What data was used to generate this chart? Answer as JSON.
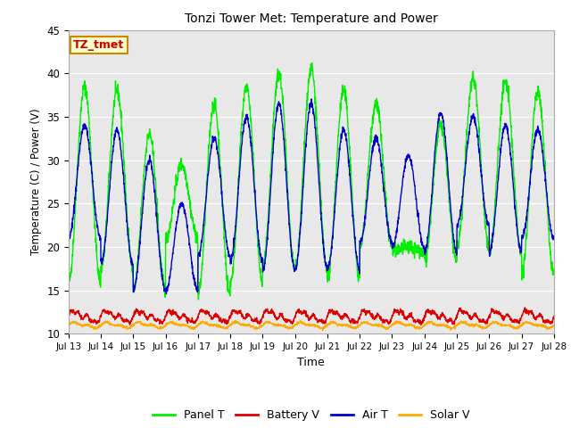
{
  "title": "Tonzi Tower Met: Temperature and Power",
  "xlabel": "Time",
  "ylabel": "Temperature (C) / Power (V)",
  "ylim": [
    10,
    45
  ],
  "n_days": 15,
  "x_tick_labels": [
    "Jul 13",
    "Jul 14",
    "Jul 15",
    "Jul 16",
    "Jul 17",
    "Jul 18",
    "Jul 19",
    "Jul 20",
    "Jul 21",
    "Jul 22",
    "Jul 23",
    "Jul 24",
    "Jul 25",
    "Jul 26",
    "Jul 27",
    "Jul 28"
  ],
  "annotation_text": "TZ_tmet",
  "bg_color": "#e8e8e8",
  "line_colors": {
    "panel_t": "#00ee00",
    "battery_v": "#dd0000",
    "air_t": "#0000cc",
    "solar_v": "#ffaa00"
  },
  "legend_labels": [
    "Panel T",
    "Battery V",
    "Air T",
    "Solar V"
  ],
  "panel_t_peaks": [
    38.5,
    38.0,
    33.0,
    29.5,
    36.5,
    38.5,
    40.0,
    40.5,
    38.0,
    36.5,
    20.0,
    34.0,
    39.5,
    39.0,
    38.0
  ],
  "panel_t_troughs": [
    16.0,
    17.5,
    15.0,
    21.0,
    14.5,
    16.0,
    17.5,
    17.5,
    16.5,
    20.0,
    19.5,
    18.5,
    20.0,
    19.5,
    17.0
  ],
  "air_t_peaks": [
    34.0,
    33.5,
    30.0,
    25.0,
    32.5,
    35.0,
    36.5,
    36.5,
    33.5,
    32.5,
    30.5,
    35.5,
    35.0,
    34.0,
    33.5
  ],
  "air_t_troughs": [
    21.0,
    18.0,
    15.0,
    15.0,
    19.0,
    18.5,
    17.5,
    17.5,
    17.5,
    20.5,
    20.0,
    19.5,
    22.5,
    19.5,
    21.0
  ],
  "battery_v_base": 12.0,
  "battery_v_amp": 0.5,
  "solar_v_base": 11.0,
  "solar_v_amp": 0.25,
  "points_per_day": 144
}
